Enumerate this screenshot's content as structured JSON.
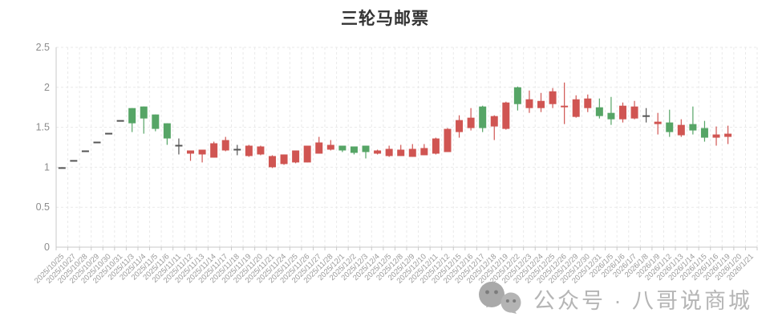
{
  "title": {
    "text": "三轮马邮票"
  },
  "watermark": {
    "text": "公众号 · 八哥说商城",
    "icon": "wechat-logo-icon"
  },
  "chart_data": {
    "type": "candlestick",
    "title": "三轮马邮票",
    "xlabel": "",
    "ylabel": "",
    "ylim": [
      0,
      2.5
    ],
    "y_ticks": [
      0,
      0.5,
      1,
      1.5,
      2,
      2.5
    ],
    "grid": true,
    "legend": "none",
    "colors": {
      "up": "#d05552",
      "down": "#56a566",
      "flat": "#555555",
      "grid": "#e9e9e9",
      "axis": "#c8c8c8",
      "tick_label": "#999999"
    },
    "categories": [
      "2025/10/25",
      "2025/10/27",
      "2025/10/28",
      "2025/10/29",
      "2025/10/30",
      "2025/10/31",
      "2025/11/3",
      "2025/11/4",
      "2025/11/5",
      "2025/11/6",
      "2025/11/11",
      "2025/11/12",
      "2025/11/13",
      "2025/11/14",
      "2025/11/17",
      "2025/11/18",
      "2025/11/19",
      "2025/11/20",
      "2025/11/21",
      "2025/11/24",
      "2025/11/25",
      "2025/11/26",
      "2025/11/27",
      "2025/11/28",
      "2025/12/1",
      "2025/12/2",
      "2025/12/3",
      "2025/12/4",
      "2025/12/5",
      "2025/12/8",
      "2025/12/9",
      "2025/12/10",
      "2025/12/11",
      "2025/12/12",
      "2025/12/15",
      "2025/12/16",
      "2025/12/17",
      "2025/12/18",
      "2025/12/19",
      "2025/12/22",
      "2025/12/23",
      "2025/12/24",
      "2025/12/25",
      "2025/12/26",
      "2025/12/29",
      "2025/12/30",
      "2025/12/31",
      "2026/1/5",
      "2026/1/6",
      "2026/1/7",
      "2026/1/8",
      "2026/1/9",
      "2026/1/12",
      "2026/1/13",
      "2026/1/14",
      "2026/1/15",
      "2026/1/16",
      "2026/1/19",
      "2026/1/20",
      "2026/1/21"
    ],
    "candles": [
      {
        "date": "2025/10/25",
        "o": 0.99,
        "c": 0.99,
        "l": 0.99,
        "h": 0.99,
        "color": "flat"
      },
      {
        "date": "2025/10/27",
        "o": 1.08,
        "c": 1.08,
        "l": 1.08,
        "h": 1.08,
        "color": "flat"
      },
      {
        "date": "2025/10/28",
        "o": 1.2,
        "c": 1.2,
        "l": 1.2,
        "h": 1.2,
        "color": "flat"
      },
      {
        "date": "2025/10/29",
        "o": 1.31,
        "c": 1.31,
        "l": 1.31,
        "h": 1.31,
        "color": "flat"
      },
      {
        "date": "2025/10/30",
        "o": 1.42,
        "c": 1.42,
        "l": 1.42,
        "h": 1.42,
        "color": "flat"
      },
      {
        "date": "2025/10/31",
        "o": 1.58,
        "c": 1.58,
        "l": 1.58,
        "h": 1.58,
        "color": "flat"
      },
      {
        "date": "2025/11/3",
        "o": 1.74,
        "c": 1.55,
        "l": 1.44,
        "h": 1.74,
        "color": "down"
      },
      {
        "date": "2025/11/4",
        "o": 1.76,
        "c": 1.61,
        "l": 1.42,
        "h": 1.76,
        "color": "down"
      },
      {
        "date": "2025/11/5",
        "o": 1.66,
        "c": 1.48,
        "l": 1.45,
        "h": 1.66,
        "color": "down"
      },
      {
        "date": "2025/11/6",
        "o": 1.55,
        "c": 1.36,
        "l": 1.28,
        "h": 1.55,
        "color": "down"
      },
      {
        "date": "2025/11/11",
        "o": 1.27,
        "c": 1.27,
        "l": 1.16,
        "h": 1.36,
        "color": "flat"
      },
      {
        "date": "2025/11/12",
        "o": 1.17,
        "c": 1.21,
        "l": 1.08,
        "h": 1.21,
        "color": "up"
      },
      {
        "date": "2025/11/13",
        "o": 1.16,
        "c": 1.22,
        "l": 1.06,
        "h": 1.22,
        "color": "up"
      },
      {
        "date": "2025/11/14",
        "o": 1.12,
        "c": 1.3,
        "l": 1.12,
        "h": 1.32,
        "color": "up"
      },
      {
        "date": "2025/11/17",
        "o": 1.21,
        "c": 1.34,
        "l": 1.2,
        "h": 1.38,
        "color": "up"
      },
      {
        "date": "2025/11/18",
        "o": 1.22,
        "c": 1.22,
        "l": 1.15,
        "h": 1.28,
        "color": "flat"
      },
      {
        "date": "2025/11/19",
        "o": 1.14,
        "c": 1.27,
        "l": 1.13,
        "h": 1.28,
        "color": "up"
      },
      {
        "date": "2025/11/20",
        "o": 1.16,
        "c": 1.26,
        "l": 1.15,
        "h": 1.27,
        "color": "up"
      },
      {
        "date": "2025/11/21",
        "o": 1.0,
        "c": 1.14,
        "l": 0.99,
        "h": 1.15,
        "color": "up"
      },
      {
        "date": "2025/11/24",
        "o": 1.04,
        "c": 1.16,
        "l": 1.03,
        "h": 1.16,
        "color": "up"
      },
      {
        "date": "2025/11/25",
        "o": 1.06,
        "c": 1.21,
        "l": 1.05,
        "h": 1.21,
        "color": "up"
      },
      {
        "date": "2025/11/26",
        "o": 1.06,
        "c": 1.27,
        "l": 1.06,
        "h": 1.27,
        "color": "up"
      },
      {
        "date": "2025/11/27",
        "o": 1.17,
        "c": 1.31,
        "l": 1.17,
        "h": 1.38,
        "color": "up"
      },
      {
        "date": "2025/11/28",
        "o": 1.22,
        "c": 1.28,
        "l": 1.21,
        "h": 1.34,
        "color": "up"
      },
      {
        "date": "2025/12/1",
        "o": 1.27,
        "c": 1.21,
        "l": 1.19,
        "h": 1.27,
        "color": "down"
      },
      {
        "date": "2025/12/2",
        "o": 1.26,
        "c": 1.18,
        "l": 1.16,
        "h": 1.26,
        "color": "down"
      },
      {
        "date": "2025/12/3",
        "o": 1.27,
        "c": 1.19,
        "l": 1.11,
        "h": 1.27,
        "color": "down"
      },
      {
        "date": "2025/12/4",
        "o": 1.17,
        "c": 1.21,
        "l": 1.16,
        "h": 1.22,
        "color": "up"
      },
      {
        "date": "2025/12/5",
        "o": 1.14,
        "c": 1.23,
        "l": 1.13,
        "h": 1.27,
        "color": "up"
      },
      {
        "date": "2025/12/8",
        "o": 1.14,
        "c": 1.22,
        "l": 1.14,
        "h": 1.28,
        "color": "up"
      },
      {
        "date": "2025/12/9",
        "o": 1.13,
        "c": 1.23,
        "l": 1.13,
        "h": 1.29,
        "color": "up"
      },
      {
        "date": "2025/12/10",
        "o": 1.15,
        "c": 1.24,
        "l": 1.15,
        "h": 1.29,
        "color": "up"
      },
      {
        "date": "2025/12/11",
        "o": 1.17,
        "c": 1.36,
        "l": 1.16,
        "h": 1.37,
        "color": "up"
      },
      {
        "date": "2025/12/12",
        "o": 1.19,
        "c": 1.48,
        "l": 1.19,
        "h": 1.49,
        "color": "up"
      },
      {
        "date": "2025/12/15",
        "o": 1.44,
        "c": 1.59,
        "l": 1.37,
        "h": 1.65,
        "color": "up"
      },
      {
        "date": "2025/12/16",
        "o": 1.49,
        "c": 1.62,
        "l": 1.46,
        "h": 1.74,
        "color": "up"
      },
      {
        "date": "2025/12/17",
        "o": 1.76,
        "c": 1.49,
        "l": 1.44,
        "h": 1.77,
        "color": "down"
      },
      {
        "date": "2025/12/18",
        "o": 1.51,
        "c": 1.64,
        "l": 1.34,
        "h": 1.65,
        "color": "up"
      },
      {
        "date": "2025/12/19",
        "o": 1.48,
        "c": 1.81,
        "l": 1.47,
        "h": 1.82,
        "color": "up"
      },
      {
        "date": "2025/12/22",
        "o": 2.0,
        "c": 1.79,
        "l": 1.71,
        "h": 2.01,
        "color": "down"
      },
      {
        "date": "2025/12/23",
        "o": 1.74,
        "c": 1.85,
        "l": 1.68,
        "h": 1.96,
        "color": "up"
      },
      {
        "date": "2025/12/24",
        "o": 1.74,
        "c": 1.83,
        "l": 1.69,
        "h": 1.93,
        "color": "up"
      },
      {
        "date": "2025/12/25",
        "o": 1.79,
        "c": 1.95,
        "l": 1.74,
        "h": 1.99,
        "color": "up"
      },
      {
        "date": "2025/12/26",
        "o": 1.74,
        "c": 1.76,
        "l": 1.54,
        "h": 2.06,
        "color": "up"
      },
      {
        "date": "2025/12/29",
        "o": 1.63,
        "c": 1.85,
        "l": 1.62,
        "h": 1.9,
        "color": "up"
      },
      {
        "date": "2025/12/30",
        "o": 1.74,
        "c": 1.86,
        "l": 1.69,
        "h": 1.91,
        "color": "up"
      },
      {
        "date": "2025/12/31",
        "o": 1.75,
        "c": 1.64,
        "l": 1.61,
        "h": 1.86,
        "color": "down"
      },
      {
        "date": "2026/1/5",
        "o": 1.68,
        "c": 1.6,
        "l": 1.53,
        "h": 1.88,
        "color": "down"
      },
      {
        "date": "2026/1/6",
        "o": 1.6,
        "c": 1.77,
        "l": 1.56,
        "h": 1.81,
        "color": "up"
      },
      {
        "date": "2026/1/7",
        "o": 1.61,
        "c": 1.76,
        "l": 1.6,
        "h": 1.83,
        "color": "up"
      },
      {
        "date": "2026/1/8",
        "o": 1.64,
        "c": 1.64,
        "l": 1.56,
        "h": 1.74,
        "color": "flat"
      },
      {
        "date": "2026/1/9",
        "o": 1.54,
        "c": 1.57,
        "l": 1.41,
        "h": 1.68,
        "color": "up"
      },
      {
        "date": "2026/1/12",
        "o": 1.56,
        "c": 1.44,
        "l": 1.38,
        "h": 1.72,
        "color": "down"
      },
      {
        "date": "2026/1/13",
        "o": 1.4,
        "c": 1.53,
        "l": 1.38,
        "h": 1.6,
        "color": "up"
      },
      {
        "date": "2026/1/14",
        "o": 1.54,
        "c": 1.46,
        "l": 1.41,
        "h": 1.76,
        "color": "down"
      },
      {
        "date": "2026/1/15",
        "o": 1.49,
        "c": 1.37,
        "l": 1.32,
        "h": 1.58,
        "color": "down"
      },
      {
        "date": "2026/1/16",
        "o": 1.37,
        "c": 1.41,
        "l": 1.27,
        "h": 1.51,
        "color": "up"
      },
      {
        "date": "2026/1/19",
        "o": 1.38,
        "c": 1.42,
        "l": 1.29,
        "h": 1.52,
        "color": "up"
      },
      {
        "date": "2026/1/20",
        "o": null,
        "c": null,
        "l": null,
        "h": null,
        "color": "none"
      },
      {
        "date": "2026/1/21",
        "o": null,
        "c": null,
        "l": null,
        "h": null,
        "color": "none"
      }
    ]
  }
}
